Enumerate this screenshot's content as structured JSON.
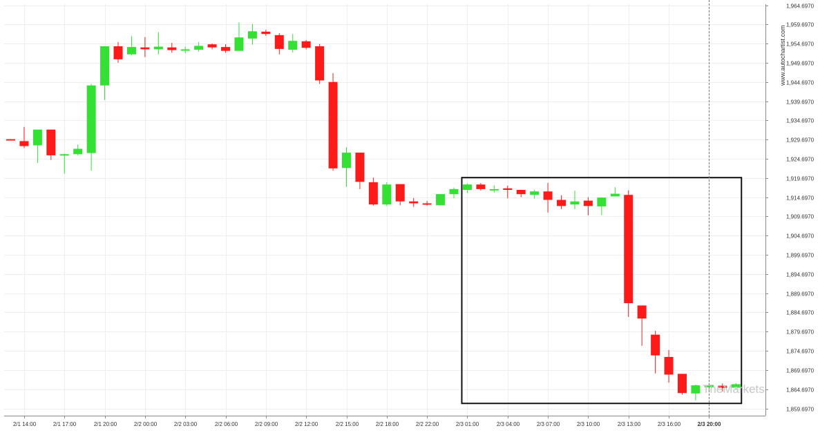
{
  "watermark": "www.autochartist.com",
  "brand": {
    "prefix": "The",
    "name": "Markets"
  },
  "colors": {
    "up": "#33e033",
    "down": "#ff1a1a",
    "grid": "#eeeeee",
    "axis": "#888888",
    "box": "#111111",
    "current_line": "#777777"
  },
  "chart_data": {
    "type": "candlestick",
    "title": "",
    "xlabel": "",
    "ylabel": "",
    "timeframe": "1 hour",
    "ylim": [
      1857.697,
      1966.697
    ],
    "y_ticks": [
      "1,964.6970",
      "1,959.6970",
      "1,954.6970",
      "1,949.6970",
      "1,944.6970",
      "1,939.6970",
      "1,934.6970",
      "1,929.6970",
      "1,924.6970",
      "1,919.6970",
      "1,914.6970",
      "1,909.6970",
      "1,904.6970",
      "1,899.6970",
      "1,894.6970",
      "1,889.6970",
      "1,884.6970",
      "1,879.6970",
      "1,874.6970",
      "1,869.6970",
      "1,864.6970",
      "1,859.6970"
    ],
    "y_tick_values": [
      1964.697,
      1959.697,
      1954.697,
      1949.697,
      1944.697,
      1939.697,
      1934.697,
      1929.697,
      1924.697,
      1919.697,
      1914.697,
      1909.697,
      1904.697,
      1899.697,
      1894.697,
      1889.697,
      1884.697,
      1879.697,
      1874.697,
      1869.697,
      1864.697,
      1859.697
    ],
    "x_ticks": [
      {
        "label": "2/1 14:00",
        "index": 1
      },
      {
        "label": "2/1 17:00",
        "index": 4
      },
      {
        "label": "2/1 20:00",
        "index": 7
      },
      {
        "label": "2/2 00:00",
        "index": 10
      },
      {
        "label": "2/2 03:00",
        "index": 13
      },
      {
        "label": "2/2 06:00",
        "index": 16
      },
      {
        "label": "2/2 09:00",
        "index": 19
      },
      {
        "label": "2/2 12:00",
        "index": 22
      },
      {
        "label": "2/2 15:00",
        "index": 25
      },
      {
        "label": "2/2 18:00",
        "index": 28
      },
      {
        "label": "2/2 22:00",
        "index": 31
      },
      {
        "label": "2/3 01:00",
        "index": 34
      },
      {
        "label": "2/3 04:00",
        "index": 37
      },
      {
        "label": "2/3 07:00",
        "index": 40
      },
      {
        "label": "2/3 10:00",
        "index": 43
      },
      {
        "label": "2/3 13:00",
        "index": 46
      },
      {
        "label": "2/3 16:00",
        "index": 49
      },
      {
        "label": "2/3 20:00",
        "index": 52,
        "bold": true
      }
    ],
    "candles": [
      {
        "o": 1929.8,
        "h": 1929.8,
        "l": 1929.5,
        "c": 1929.5
      },
      {
        "o": 1929.3,
        "h": 1933.0,
        "l": 1927.5,
        "c": 1928.0
      },
      {
        "o": 1928.2,
        "h": 1932.3,
        "l": 1923.6,
        "c": 1932.3
      },
      {
        "o": 1932.3,
        "h": 1932.3,
        "l": 1924.4,
        "c": 1925.6
      },
      {
        "o": 1925.6,
        "h": 1926.0,
        "l": 1920.8,
        "c": 1925.9
      },
      {
        "o": 1925.9,
        "h": 1928.4,
        "l": 1925.6,
        "c": 1927.3
      },
      {
        "o": 1926.2,
        "h": 1944.2,
        "l": 1921.6,
        "c": 1943.8
      },
      {
        "o": 1943.8,
        "h": 1954.0,
        "l": 1940.0,
        "c": 1954.0
      },
      {
        "o": 1954.0,
        "h": 1955.1,
        "l": 1949.7,
        "c": 1950.6
      },
      {
        "o": 1951.9,
        "h": 1956.6,
        "l": 1951.6,
        "c": 1953.8
      },
      {
        "o": 1953.7,
        "h": 1956.4,
        "l": 1951.2,
        "c": 1953.2
      },
      {
        "o": 1953.2,
        "h": 1957.7,
        "l": 1951.9,
        "c": 1953.9
      },
      {
        "o": 1953.7,
        "h": 1954.9,
        "l": 1952.3,
        "c": 1953.0
      },
      {
        "o": 1953.1,
        "h": 1953.9,
        "l": 1952.2,
        "c": 1953.2
      },
      {
        "o": 1953.1,
        "h": 1955.1,
        "l": 1952.6,
        "c": 1954.1
      },
      {
        "o": 1954.5,
        "h": 1954.7,
        "l": 1953.2,
        "c": 1953.7
      },
      {
        "o": 1953.8,
        "h": 1954.5,
        "l": 1952.3,
        "c": 1952.8
      },
      {
        "o": 1952.8,
        "h": 1960.2,
        "l": 1952.8,
        "c": 1956.3
      },
      {
        "o": 1956.0,
        "h": 1959.8,
        "l": 1954.4,
        "c": 1957.9
      },
      {
        "o": 1957.8,
        "h": 1958.3,
        "l": 1956.7,
        "c": 1957.2
      },
      {
        "o": 1956.9,
        "h": 1957.4,
        "l": 1951.9,
        "c": 1953.3
      },
      {
        "o": 1953.1,
        "h": 1957.2,
        "l": 1952.4,
        "c": 1955.4
      },
      {
        "o": 1955.3,
        "h": 1955.6,
        "l": 1953.2,
        "c": 1953.6
      },
      {
        "o": 1954.0,
        "h": 1954.6,
        "l": 1944.2,
        "c": 1945.1
      },
      {
        "o": 1944.7,
        "h": 1947.0,
        "l": 1921.6,
        "c": 1922.2
      },
      {
        "o": 1922.3,
        "h": 1927.7,
        "l": 1917.4,
        "c": 1926.3
      },
      {
        "o": 1926.3,
        "h": 1926.3,
        "l": 1916.8,
        "c": 1918.7
      },
      {
        "o": 1918.6,
        "h": 1919.8,
        "l": 1912.5,
        "c": 1912.8
      },
      {
        "o": 1912.8,
        "h": 1918.6,
        "l": 1912.4,
        "c": 1918.0
      },
      {
        "o": 1918.1,
        "h": 1918.1,
        "l": 1912.6,
        "c": 1913.6
      },
      {
        "o": 1913.6,
        "h": 1914.5,
        "l": 1912.2,
        "c": 1913.1
      },
      {
        "o": 1913.1,
        "h": 1913.7,
        "l": 1912.5,
        "c": 1913.0
      },
      {
        "o": 1912.6,
        "h": 1915.5,
        "l": 1912.6,
        "c": 1915.5
      },
      {
        "o": 1915.5,
        "h": 1917.2,
        "l": 1914.4,
        "c": 1916.8
      },
      {
        "o": 1916.6,
        "h": 1918.3,
        "l": 1915.8,
        "c": 1918.0
      },
      {
        "o": 1918.0,
        "h": 1918.4,
        "l": 1916.4,
        "c": 1916.8
      },
      {
        "o": 1916.8,
        "h": 1917.8,
        "l": 1915.9,
        "c": 1916.8
      },
      {
        "o": 1917.0,
        "h": 1917.7,
        "l": 1914.4,
        "c": 1916.6
      },
      {
        "o": 1916.6,
        "h": 1916.6,
        "l": 1914.7,
        "c": 1915.5
      },
      {
        "o": 1915.3,
        "h": 1916.6,
        "l": 1914.3,
        "c": 1916.2
      },
      {
        "o": 1916.2,
        "h": 1918.4,
        "l": 1910.7,
        "c": 1914.0
      },
      {
        "o": 1914.0,
        "h": 1915.2,
        "l": 1911.6,
        "c": 1912.4
      },
      {
        "o": 1912.8,
        "h": 1916.4,
        "l": 1911.6,
        "c": 1913.6
      },
      {
        "o": 1913.8,
        "h": 1914.7,
        "l": 1910.0,
        "c": 1912.4
      },
      {
        "o": 1912.3,
        "h": 1914.6,
        "l": 1910.0,
        "c": 1914.6
      },
      {
        "o": 1914.9,
        "h": 1917.3,
        "l": 1914.9,
        "c": 1915.6
      },
      {
        "o": 1915.3,
        "h": 1916.5,
        "l": 1883.5,
        "c": 1887.1
      },
      {
        "o": 1886.5,
        "h": 1886.5,
        "l": 1876.0,
        "c": 1883.1
      },
      {
        "o": 1878.9,
        "h": 1879.9,
        "l": 1868.8,
        "c": 1873.5
      },
      {
        "o": 1873.1,
        "h": 1874.9,
        "l": 1866.4,
        "c": 1868.5
      },
      {
        "o": 1868.7,
        "h": 1868.7,
        "l": 1863.3,
        "c": 1863.7
      },
      {
        "o": 1863.6,
        "h": 1865.9,
        "l": 1861.8,
        "c": 1865.7
      },
      {
        "o": 1865.2,
        "h": 1866.2,
        "l": 1863.9,
        "c": 1865.8
      },
      {
        "o": 1865.6,
        "h": 1866.2,
        "l": 1864.1,
        "c": 1865.0
      },
      {
        "o": 1865.1,
        "h": 1866.3,
        "l": 1864.7,
        "c": 1866.0
      }
    ],
    "highlight": {
      "start_index": 34,
      "end_index": 54,
      "top": 1919.8,
      "bottom": 1861.0
    },
    "current_index": 52
  }
}
